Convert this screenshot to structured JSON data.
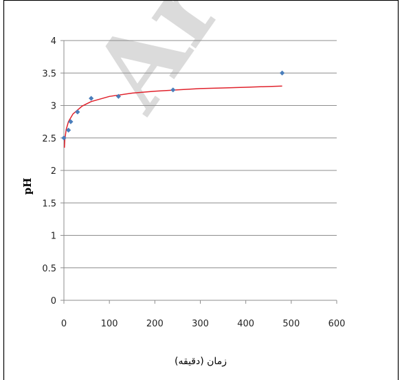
{
  "chart_data": {
    "type": "scatter",
    "title": "",
    "xlabel": "زمان (دقیقه)",
    "ylabel": "pH",
    "xlim": [
      0,
      600
    ],
    "ylim": [
      0,
      4
    ],
    "x_ticks": [
      "0",
      "100",
      "200",
      "300",
      "400",
      "500",
      "600"
    ],
    "y_ticks": [
      "0",
      "0.5",
      "1",
      "1.5",
      "2",
      "2.5",
      "3",
      "3.5",
      "4"
    ],
    "grid": "horizontal",
    "legend": "none",
    "series": [
      {
        "kind": "points",
        "marker": "diamond",
        "color": "#4a7ebb",
        "x": [
          0,
          10,
          15,
          30,
          60,
          120,
          240,
          480
        ],
        "y": [
          2.5,
          2.62,
          2.75,
          2.9,
          3.11,
          3.14,
          3.24,
          3.5
        ]
      },
      {
        "kind": "trendline",
        "fit": "logarithmic",
        "color": "#e0202a",
        "x": [
          1,
          2,
          5,
          10,
          20,
          40,
          60,
          100,
          150,
          200,
          250,
          300,
          350,
          400,
          480
        ],
        "y": [
          2.35,
          2.47,
          2.63,
          2.75,
          2.87,
          2.99,
          3.06,
          3.14,
          3.19,
          3.22,
          3.24,
          3.26,
          3.27,
          3.28,
          3.3
        ]
      }
    ]
  },
  "watermark": "Arc"
}
